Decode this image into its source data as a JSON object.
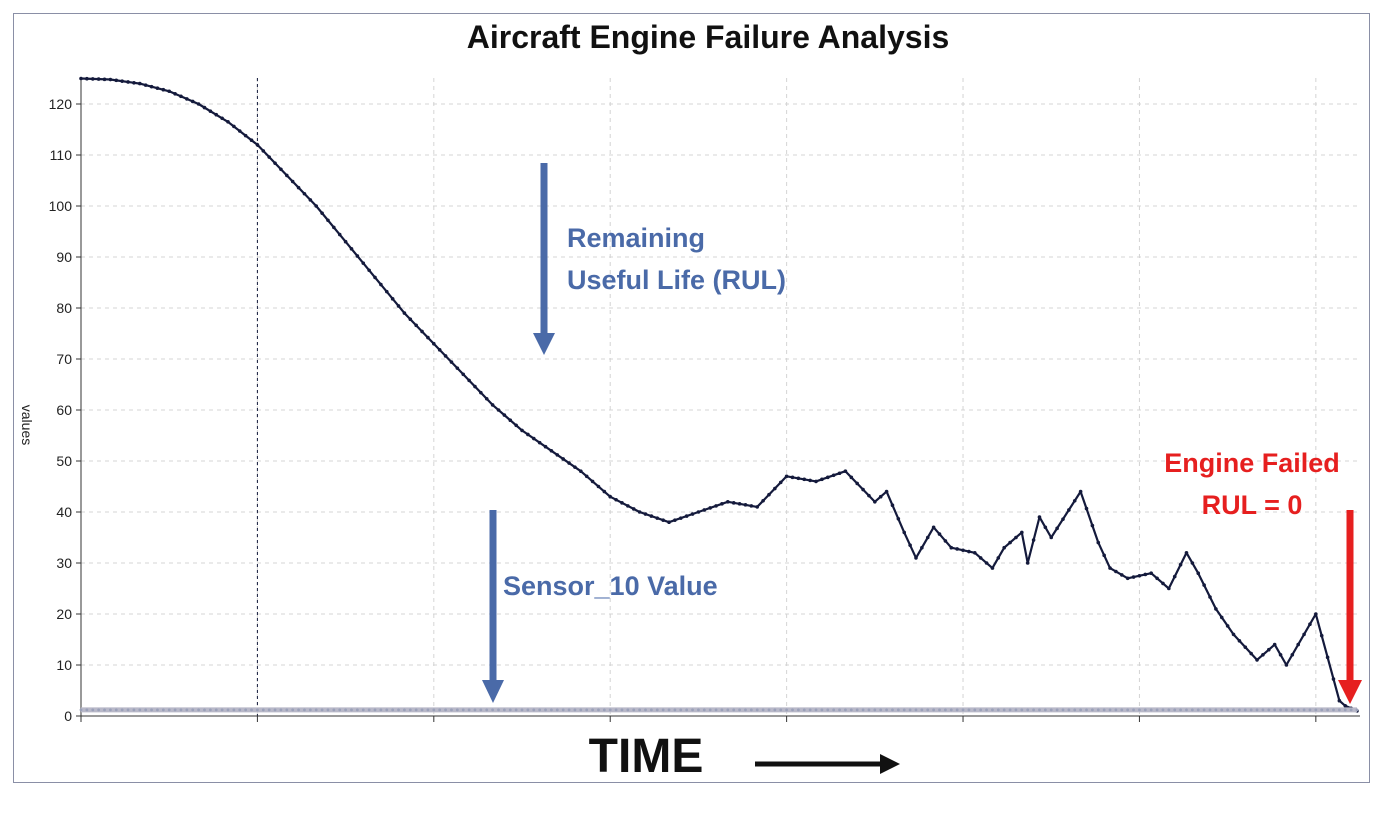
{
  "colors": {
    "line": "#141a3c",
    "annotation_blue": "#4a6aa8",
    "annotation_red": "#e61f1f",
    "sensor_line": "#b8b8c8",
    "grid": "#d4d4d4"
  },
  "chart_data": {
    "type": "line",
    "title": "Aircraft Engine Failure Analysis",
    "xlabel": "TIME",
    "ylabel": "values",
    "ylim": [
      0,
      125
    ],
    "xlim": [
      0,
      217
    ],
    "yticks": [
      0,
      10,
      20,
      30,
      40,
      50,
      60,
      70,
      80,
      90,
      100,
      110,
      120
    ],
    "xticks": [
      0,
      30,
      60,
      90,
      120,
      150,
      180,
      210
    ],
    "grid": true,
    "series": [
      {
        "kind": "rul",
        "x": [
          0,
          5,
          10,
          15,
          20,
          25,
          30,
          35,
          40,
          45,
          50,
          55,
          60,
          65,
          70,
          75,
          80,
          85,
          90,
          95,
          100,
          105,
          110,
          115,
          120,
          125,
          130,
          135,
          137,
          140,
          142,
          145,
          148,
          152,
          155,
          157,
          160,
          161,
          163,
          165,
          170,
          173,
          175,
          178,
          182,
          185,
          188,
          190,
          193,
          196,
          200,
          203,
          205,
          210,
          214,
          215,
          217
        ],
        "y": [
          125,
          124.8,
          124,
          122.5,
          120,
          116.5,
          112,
          106,
          100,
          93,
          86,
          79,
          73,
          67,
          61,
          56,
          52,
          48,
          43,
          40,
          38,
          40,
          42,
          41,
          47,
          46,
          48,
          42,
          44,
          36,
          31,
          37,
          33,
          32,
          29,
          33,
          36,
          30,
          39,
          35,
          44,
          34,
          29,
          27,
          28,
          25,
          32,
          28,
          21,
          16,
          11,
          14,
          10,
          20,
          3,
          2,
          1
        ]
      },
      {
        "kind": "sensor",
        "x": [
          0,
          217
        ],
        "y": [
          1.2,
          1.2
        ]
      }
    ],
    "markers": [
      30
    ],
    "annotations": {
      "rul_label": [
        "Remaining",
        "Useful Life (RUL)"
      ],
      "sensor_label": "Sensor_10 Value",
      "failed_label": [
        "Engine Failed",
        "RUL = 0"
      ]
    }
  }
}
